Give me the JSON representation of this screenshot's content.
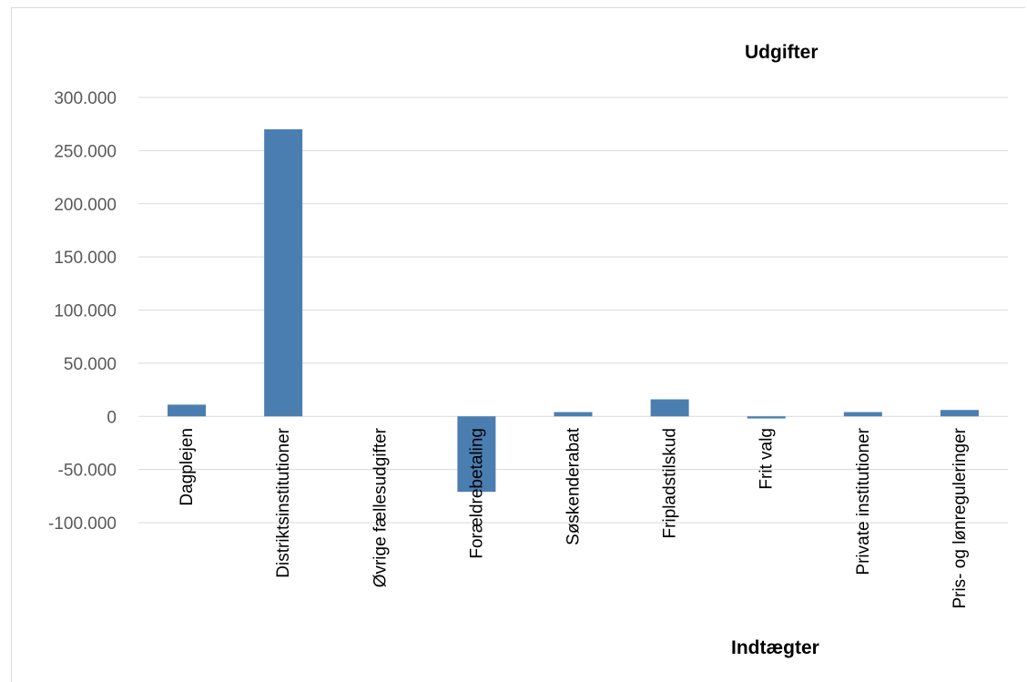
{
  "chart_data": {
    "type": "bar",
    "categories": [
      "Dagplejen",
      "Distriktsinstitutioner",
      "Øvrige fællesudgifter",
      "Forældrebetaling",
      "Søskenderabat",
      "Fripladstilskud",
      "Frit valg",
      "Private institutioner",
      "Pris- og lønreguleringer"
    ],
    "values": [
      11000,
      270000,
      0,
      -71000,
      4000,
      16000,
      -2000,
      4000,
      6000
    ],
    "title": "",
    "xlabel": "",
    "ylabel": "",
    "ylim": [
      -100000,
      300000
    ],
    "yticks": [
      300000,
      250000,
      200000,
      150000,
      100000,
      50000,
      0,
      -50000,
      -100000
    ],
    "ytick_labels": [
      "300.000",
      "250.000",
      "200.000",
      "150.000",
      "100.000",
      "50.000",
      "0",
      "-50.000",
      "-100.000"
    ],
    "annotations": [
      "Udgifter",
      "Indtægter"
    ],
    "grid": true,
    "legend": "none",
    "bar_color": "#4a7eb1",
    "grid_color": "#d9d9d9"
  }
}
